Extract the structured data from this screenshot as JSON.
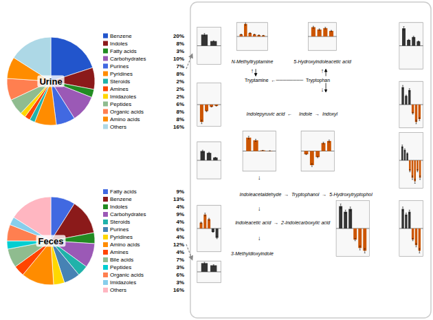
{
  "chart_data": [
    {
      "type": "pie",
      "title": "Urine",
      "categories": [
        "Benzene",
        "Indoles",
        "Fatty acids",
        "Carbohydrates",
        "Purines",
        "Pyridines",
        "Steroids",
        "Amines",
        "Imidazoles",
        "Peptides",
        "Organic acids",
        "Amino acids",
        "Others"
      ],
      "values": [
        20,
        8,
        3,
        10,
        7,
        8,
        2,
        2,
        2,
        6,
        8,
        8,
        16
      ],
      "value_labels": [
        "20%",
        "8%",
        "3%",
        "10%",
        "7%",
        "8%",
        "2%",
        "2%",
        "2%",
        "6%",
        "8%",
        "8%",
        "16%"
      ],
      "colors": [
        "#2255cc",
        "#8B1A1A",
        "#228B22",
        "#9B59B6",
        "#4169E1",
        "#FF8C00",
        "#20B2AA",
        "#FF4500",
        "#FFD700",
        "#8FBC8F",
        "#FF7F50",
        "#FF8C00",
        "#ADD8E6"
      ],
      "data_labels": true,
      "legend": "right"
    },
    {
      "type": "pie",
      "title": "Feces",
      "categories": [
        "Fatty acids",
        "Benzene",
        "Indoles",
        "Carbohydrates",
        "Steroids",
        "Purines",
        "Pyridines",
        "Amino acids",
        "Amines",
        "Bile acids",
        "Peptides",
        "Organic acids",
        "Imidazoles",
        "Others"
      ],
      "values": [
        9,
        13,
        4,
        9,
        4,
        6,
        4,
        12,
        4,
        7,
        3,
        6,
        3,
        16
      ],
      "value_labels": [
        "9%",
        "13%",
        "4%",
        "9%",
        "4%",
        "6%",
        "4%",
        "12%",
        "4%",
        "7%",
        "3%",
        "6%",
        "3%",
        "16%"
      ],
      "colors": [
        "#4169E1",
        "#8B1A1A",
        "#228B22",
        "#9B59B6",
        "#20B2AA",
        "#4682B4",
        "#FFD700",
        "#FF8C00",
        "#FF4500",
        "#8FBC8F",
        "#00CED1",
        "#FF7F50",
        "#87CEEB",
        "#FFB6C1"
      ],
      "data_labels": true,
      "legend": "right"
    },
    {
      "type": "bar",
      "values": [
        0.6,
        0.25
      ],
      "errors": [
        0.06,
        0.025
      ],
      "colors": [
        "#333333",
        "#333333"
      ],
      "ylim": [
        -1,
        1
      ],
      "yticks": [
        -1,
        0,
        1
      ],
      "tick_labels": false
    },
    {
      "type": "bar",
      "values": [
        0.3,
        1.8,
        0.5,
        0.3,
        0.2,
        0.15
      ],
      "errors": [
        0.03,
        0.18,
        0.05,
        0.03,
        0.02,
        0.015
      ],
      "colors": [
        "#CC5500",
        "#CC5500",
        "#CC5500",
        "#CC5500",
        "#CC5500",
        "#CC5500"
      ],
      "ylim": [
        -2,
        2
      ],
      "yticks": [
        -2,
        0,
        2
      ],
      "tick_labels": false
    },
    {
      "type": "bar",
      "values": [
        2.0,
        1.5,
        1.8,
        1.2
      ],
      "errors": [
        0.2,
        0.15,
        0.18,
        0.12
      ],
      "colors": [
        "#CC5500",
        "#CC5500",
        "#CC5500",
        "#CC5500"
      ],
      "ylim": [
        -3,
        3
      ],
      "yticks": [
        -3,
        0,
        3
      ],
      "tick_labels": false
    },
    {
      "type": "bar",
      "values": [
        6.0,
        2.0,
        3.0,
        1.5
      ],
      "errors": [
        0.6,
        0.2,
        0.3,
        0.15
      ],
      "colors": [
        "#333333",
        "#333333",
        "#333333",
        "#333333"
      ],
      "ylim": [
        -8,
        8
      ],
      "yticks": [
        -8,
        0,
        8
      ],
      "tick_labels": false
    },
    {
      "type": "bar",
      "values": [
        -4.0,
        -1.5,
        -0.5,
        -0.3
      ],
      "errors": [
        0.4,
        0.15,
        0.05,
        0.03
      ],
      "colors": [
        "#CC5500",
        "#CC5500",
        "#CC5500",
        "#CC5500"
      ],
      "ylim": [
        -5,
        5
      ],
      "yticks": [
        -5,
        0,
        5
      ],
      "tick_labels": false
    },
    {
      "type": "bar",
      "values": [
        3.0,
        1.5,
        2.5,
        -1.5,
        -3.0,
        -2.5
      ],
      "errors": [
        0.3,
        0.15,
        0.25,
        0.15,
        0.3,
        0.25
      ],
      "colors": [
        "#333333",
        "#333333",
        "#333333",
        "#CC5500",
        "#CC5500",
        "#CC5500"
      ],
      "ylim": [
        -4,
        4
      ],
      "yticks": [
        -4,
        0,
        4
      ],
      "tick_labels": false
    },
    {
      "type": "bar",
      "values": [
        1.0,
        0.8,
        0.3
      ],
      "errors": [
        0.1,
        0.08,
        0.03
      ],
      "colors": [
        "#333333",
        "#333333",
        "#333333"
      ],
      "ylim": [
        -2,
        2
      ],
      "yticks": [
        -2,
        0,
        2
      ],
      "tick_labels": false
    },
    {
      "type": "bar",
      "values": [
        10.0,
        8.0,
        0.5,
        0.2
      ],
      "errors": [
        1.0,
        0.8,
        0.05,
        0.02
      ],
      "colors": [
        "#CC5500",
        "#CC5500",
        "#CC5500",
        "#CC5500"
      ],
      "ylim": [
        -15,
        15
      ],
      "yticks": [
        -15,
        0,
        15
      ],
      "tick_labels": false
    },
    {
      "type": "bar",
      "values": [
        -0.8,
        -3.5,
        -1.5,
        2.0,
        2.5
      ],
      "errors": [
        0.08,
        0.35,
        0.15,
        0.2,
        0.25
      ],
      "colors": [
        "#CC5500",
        "#CC5500",
        "#CC5500",
        "#CC5500",
        "#CC5500"
      ],
      "ylim": [
        -5,
        5
      ],
      "yticks": [
        -5,
        0,
        5
      ],
      "tick_labels": false
    },
    {
      "type": "bar",
      "values": [
        2.0,
        1.5,
        1.0,
        -1.5,
        -2.5,
        -3.0,
        -1.5,
        -2.5
      ],
      "errors": [
        0.2,
        0.15,
        0.1,
        0.15,
        0.25,
        0.3,
        0.15,
        0.25
      ],
      "colors": [
        "#333333",
        "#333333",
        "#333333",
        "#CC5500",
        "#CC5500",
        "#CC5500",
        "#CC5500",
        "#CC5500"
      ],
      "ylim": [
        -4,
        4
      ],
      "yticks": [
        -4,
        0,
        4
      ],
      "tick_labels": false
    },
    {
      "type": "bar",
      "values": [
        0.5,
        1.2,
        0.8,
        -0.3,
        -0.8
      ],
      "errors": [
        0.05,
        0.12,
        0.08,
        0.03,
        0.08
      ],
      "colors": [
        "#CC5500",
        "#CC5500",
        "#CC5500",
        "#333333",
        "#333333"
      ],
      "ylim": [
        -2,
        2
      ],
      "yticks": [
        -2,
        0,
        2
      ],
      "tick_labels": false
    },
    {
      "type": "bar",
      "values": [
        0.4,
        0.3
      ],
      "errors": [
        0.04,
        0.03
      ],
      "colors": [
        "#333333",
        "#333333"
      ],
      "ylim": [
        -0.5,
        0.5
      ],
      "yticks": [
        -0.5,
        0,
        0.5
      ],
      "tick_labels": false
    },
    {
      "type": "bar",
      "values": [
        4.0,
        3.0,
        3.5,
        -2.0,
        -3.5,
        -4.0
      ],
      "errors": [
        0.4,
        0.3,
        0.35,
        0.2,
        0.35,
        0.4
      ],
      "colors": [
        "#333333",
        "#333333",
        "#333333",
        "#CC5500",
        "#CC5500",
        "#CC5500"
      ],
      "ylim": [
        -5,
        5
      ],
      "yticks": [
        -5,
        0,
        5
      ],
      "tick_labels": false
    },
    {
      "type": "bar",
      "values": [
        3.5,
        2.5,
        3.0,
        -2.0,
        -3.0,
        -4.0
      ],
      "errors": [
        0.35,
        0.25,
        0.3,
        0.2,
        0.3,
        0.4
      ],
      "colors": [
        "#333333",
        "#333333",
        "#333333",
        "#CC5500",
        "#CC5500",
        "#CC5500"
      ],
      "ylim": [
        -5,
        5
      ],
      "yticks": [
        -5,
        0,
        5
      ],
      "tick_labels": false
    },
    {
      "type": "diagram",
      "annotations": [
        "N-Methyltryptamine",
        "5-Hydroxyindoleacetic acid",
        "Tryptamine  ←────────  Tryptophan",
        "↑",
        "↑",
        "↓",
        "Indolepyruvic acid  ←     Indole  →  Indoxyl",
        "↓",
        "Indoleacetaldehyde  →  Tryptophanol  →  5-Hydroxytryptophol",
        "↓",
        "Indoleacetic acid  →  2-Indolecarboxylic acid",
        "↓",
        "3-Methyldioxyindole"
      ]
    }
  ]
}
